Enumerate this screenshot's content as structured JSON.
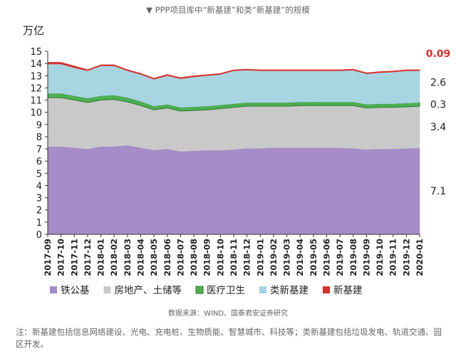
{
  "chart_data": {
    "type": "stacked_area",
    "title": "▼ PPP项目库中“新基建”和类“新基建”的规模",
    "y_label": "万亿",
    "source": "数据来源：WIND、国泰君安证券研究",
    "note": "注：新基建包括信息网络建设、光电、充电桩、生物质能、智慧城市、科技等；类新基建包括垃圾发电、轨道交通、园区开发。",
    "categories": [
      "2017-09",
      "2017-10",
      "2017-11",
      "2017-12",
      "2018-01",
      "2018-02",
      "2018-03",
      "2018-04",
      "2018-05",
      "2018-06",
      "2018-07",
      "2018-08",
      "2018-09",
      "2018-10",
      "2018-11",
      "2018-12",
      "2019-01",
      "2019-02",
      "2019-03",
      "2019-04",
      "2019-05",
      "2019-06",
      "2019-07",
      "2019-08",
      "2019-09",
      "2019-10",
      "2019-11",
      "2019-12",
      "2020-01"
    ],
    "series": [
      {
        "name": "铁公基",
        "color": "#a68cc8",
        "values": [
          7.2,
          7.2,
          7.1,
          7.0,
          7.2,
          7.2,
          7.3,
          7.1,
          6.9,
          7.0,
          6.8,
          6.85,
          6.9,
          6.9,
          6.95,
          7.05,
          7.05,
          7.1,
          7.1,
          7.1,
          7.1,
          7.1,
          7.1,
          7.05,
          6.95,
          7.0,
          7.0,
          7.05,
          7.1
        ]
      },
      {
        "name": "房地产、土储等",
        "color": "#c9c9c9",
        "values": [
          4.0,
          4.0,
          3.9,
          3.8,
          3.8,
          3.85,
          3.55,
          3.45,
          3.3,
          3.35,
          3.3,
          3.3,
          3.3,
          3.4,
          3.45,
          3.45,
          3.45,
          3.4,
          3.4,
          3.45,
          3.45,
          3.45,
          3.45,
          3.5,
          3.4,
          3.4,
          3.4,
          3.4,
          3.4
        ]
      },
      {
        "name": "医疗卫生",
        "color": "#4caf50",
        "values": [
          0.35,
          0.35,
          0.35,
          0.35,
          0.35,
          0.35,
          0.35,
          0.35,
          0.3,
          0.3,
          0.3,
          0.3,
          0.3,
          0.3,
          0.3,
          0.3,
          0.3,
          0.3,
          0.3,
          0.3,
          0.3,
          0.3,
          0.3,
          0.3,
          0.3,
          0.3,
          0.3,
          0.3,
          0.3
        ]
      },
      {
        "name": "类新基建",
        "color": "#a8d5e2",
        "values": [
          2.4,
          2.4,
          2.3,
          2.25,
          2.45,
          2.4,
          2.2,
          2.2,
          2.2,
          2.35,
          2.35,
          2.45,
          2.5,
          2.5,
          2.7,
          2.65,
          2.6,
          2.6,
          2.6,
          2.55,
          2.55,
          2.55,
          2.55,
          2.6,
          2.5,
          2.55,
          2.6,
          2.65,
          2.6
        ]
      },
      {
        "name": "新基建",
        "color": "#d9302c",
        "values": [
          0.15,
          0.15,
          0.15,
          0.1,
          0.1,
          0.1,
          0.1,
          0.1,
          0.1,
          0.1,
          0.1,
          0.1,
          0.09,
          0.09,
          0.09,
          0.09,
          0.09,
          0.09,
          0.09,
          0.09,
          0.09,
          0.09,
          0.09,
          0.09,
          0.09,
          0.09,
          0.09,
          0.09,
          0.09
        ]
      }
    ],
    "ylim": [
      0,
      15
    ],
    "yticks": [
      0,
      1,
      2,
      3,
      4,
      5,
      6,
      7,
      8,
      9,
      10,
      11,
      12,
      13,
      14,
      15
    ]
  }
}
